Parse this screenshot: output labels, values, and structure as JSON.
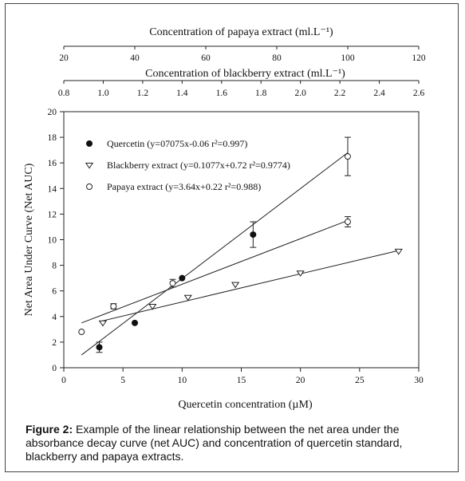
{
  "chart_data": {
    "type": "scatter",
    "title": "",
    "xlabel": "Quercetin concentration (µM)",
    "ylabel": "Net Area Under Curve (Net AUC)",
    "xlim": [
      0,
      30
    ],
    "ylim": [
      0,
      20
    ],
    "x_ticks": [
      "0",
      "5",
      "10",
      "15",
      "20",
      "25",
      "30"
    ],
    "y_ticks": [
      "0",
      "2",
      "4",
      "6",
      "8",
      "10",
      "12",
      "14",
      "16",
      "18",
      "20"
    ],
    "top_axes": [
      {
        "label": "Concentration of papaya extract (ml.L⁻¹)",
        "lim": [
          20,
          120
        ],
        "ticks": [
          "20",
          "40",
          "60",
          "80",
          "100",
          "120"
        ]
      },
      {
        "label": "Concentration of  blackberry extract  (ml.L⁻¹)",
        "lim": [
          0.8,
          2.6
        ],
        "ticks": [
          "0.8",
          "1.0",
          "1.2",
          "1.4",
          "1.6",
          "1.8",
          "2.0",
          "2.2",
          "2.4",
          "2.6"
        ]
      }
    ],
    "legend_position": "top-left",
    "series": [
      {
        "name": "Quercetin (y=07075x-0.06  r²=0.997)",
        "marker": "filled-circle",
        "x": [
          3,
          6,
          10,
          16
        ],
        "y": [
          1.6,
          3.5,
          7.0,
          10.4
        ],
        "error": [
          0.4,
          0,
          0,
          1.0
        ],
        "fit": {
          "x": [
            1.5,
            24
          ],
          "y": [
            1.0,
            16.8
          ]
        }
      },
      {
        "name": "Blackberry extract (y=0.1077x+0.72  r²=0.9774)",
        "marker": "triangle-down",
        "x": [
          3.3,
          7.5,
          10.5,
          14.5,
          20,
          28.3
        ],
        "y": [
          3.5,
          4.8,
          5.5,
          6.5,
          7.4,
          9.1
        ],
        "error": [
          0,
          0,
          0,
          0,
          0,
          0
        ],
        "fit": {
          "x": [
            3,
            28.5
          ],
          "y": [
            3.6,
            9.2
          ]
        }
      },
      {
        "name": "Papaya extract (y=3.64x+0.22  r²=0.988)",
        "marker": "open-circle",
        "x": [
          1.5,
          4.2,
          9.2,
          24
        ],
        "y": [
          2.8,
          4.8,
          6.6,
          11.4
        ],
        "error": [
          0,
          0.2,
          0.3,
          0.4
        ],
        "fit": {
          "x": [
            1.5,
            24
          ],
          "y": [
            3.5,
            11.5
          ]
        }
      },
      {
        "name": "",
        "marker": "open-circle",
        "x": [
          24
        ],
        "y": [
          16.5
        ],
        "error": [
          1.5
        ]
      }
    ]
  },
  "caption": {
    "label": "Figure 2:",
    "text": " Example of the linear relationship between the net area under the absorbance decay curve (net AUC) and concentration of quercetin standard, blackberry and papaya extracts."
  }
}
